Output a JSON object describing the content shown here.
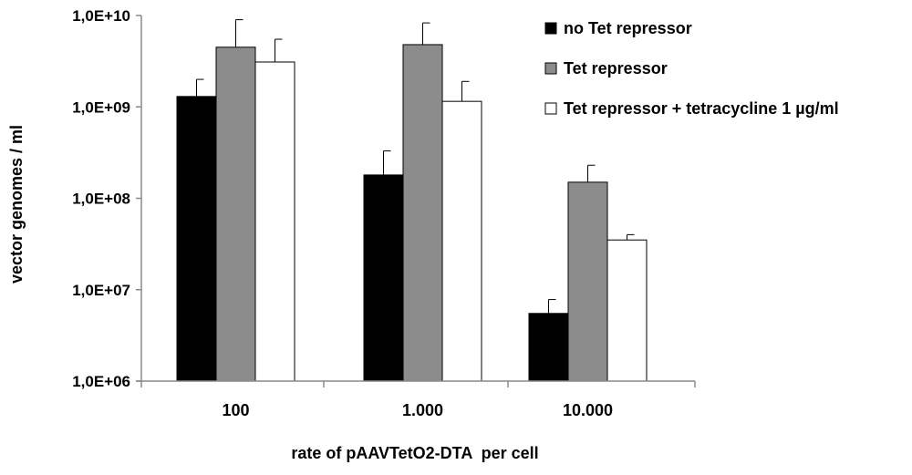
{
  "chart_data": {
    "type": "bar",
    "scale": "log",
    "title": "",
    "xlabel": "rate of pAAVTetO2-DTA  per cell",
    "ylabel": "vector genomes / ml",
    "ylim": [
      1000000,
      10000000000
    ],
    "yticks": [
      1000000,
      10000000,
      100000000,
      1000000000,
      10000000000
    ],
    "ytick_labels": [
      "1,0E+06",
      "1,0E+07",
      "1,0E+08",
      "1,0E+09",
      "1,0E+10"
    ],
    "categories": [
      "100",
      "1.000",
      "10.000"
    ],
    "series": [
      {
        "name": "no Tet repressor",
        "color": "#000000",
        "values": [
          1300000000,
          180000000,
          5500000
        ],
        "errors": [
          2000000000,
          330000000,
          7800000
        ]
      },
      {
        "name": "Tet repressor",
        "color": "#8c8c8c",
        "values": [
          4500000000,
          4800000000,
          150000000
        ],
        "errors": [
          9000000000,
          8300000000,
          230000000
        ]
      },
      {
        "name": "Tet repressor + tetracycline 1 µg/ml",
        "color": "#ffffff",
        "values": [
          3100000000,
          1150000000,
          35000000
        ],
        "errors": [
          5500000000,
          1900000000,
          40000000
        ]
      }
    ],
    "legend_position": "top-right",
    "grid": false
  }
}
